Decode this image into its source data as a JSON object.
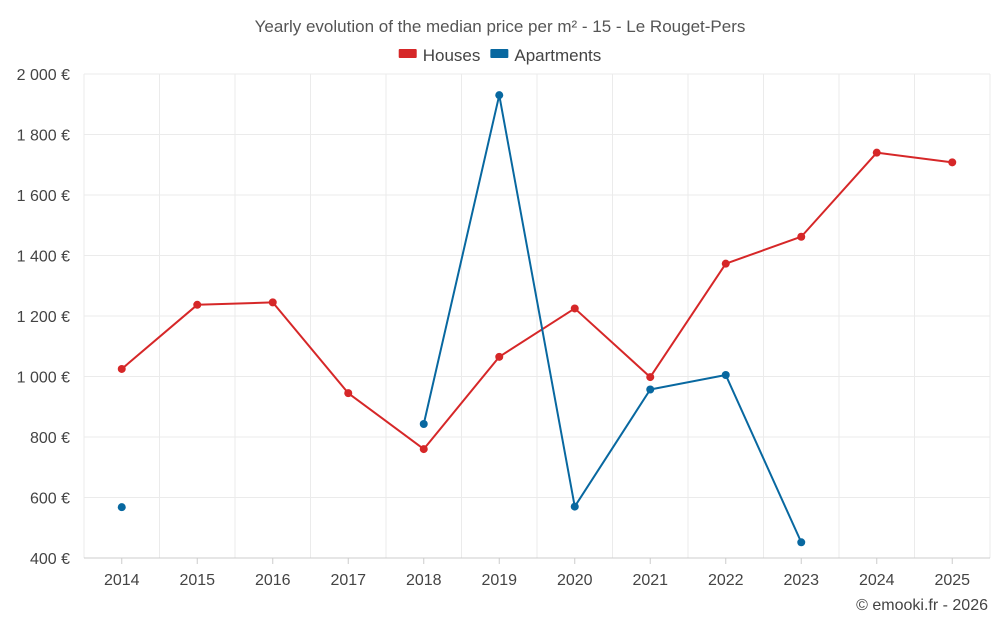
{
  "chart_data": {
    "type": "line",
    "title": "Yearly evolution of the median price per m² - 15 - Le Rouget-Pers",
    "categories": [
      "2014",
      "2015",
      "2016",
      "2017",
      "2018",
      "2019",
      "2020",
      "2021",
      "2022",
      "2023",
      "2024",
      "2025"
    ],
    "ylim": [
      400,
      2000
    ],
    "yticks": [
      400,
      600,
      800,
      1000,
      1200,
      1400,
      1600,
      1800,
      2000
    ],
    "ytick_labels": [
      "400 €",
      "600 €",
      "800 €",
      "1 000 €",
      "1 200 €",
      "1 400 €",
      "1 600 €",
      "1 800 €",
      "2 000 €"
    ],
    "grid": true,
    "legend_position": "top-center",
    "series": [
      {
        "name": "Houses",
        "color": "#d62728",
        "values": [
          1025,
          1237,
          1245,
          945,
          760,
          1065,
          1225,
          998,
          1373,
          1462,
          1740,
          1708
        ]
      },
      {
        "name": "Apartments",
        "color": "#0868a0",
        "values": [
          568,
          null,
          null,
          null,
          843,
          1930,
          570,
          957,
          1005,
          452,
          null,
          null
        ]
      }
    ],
    "credit": "© emooki.fr - 2026"
  }
}
